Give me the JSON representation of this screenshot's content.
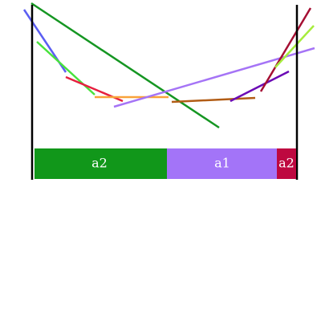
{
  "diagram": {
    "background": "#ffffff",
    "bar_segments": [
      {
        "label": "a2",
        "color": "#11971a"
      },
      {
        "label": "a1",
        "color": "#a374f8"
      },
      {
        "label": "a2",
        "color": "#be0840"
      }
    ],
    "line_colors": [
      "#5b5ef2",
      "#48e23c",
      "#e61f3f",
      "#f9a23a",
      "#159622",
      "#a574f6",
      "#b25d16",
      "#6b0ab5",
      "#a50f33",
      "#a6ec3c"
    ]
  }
}
